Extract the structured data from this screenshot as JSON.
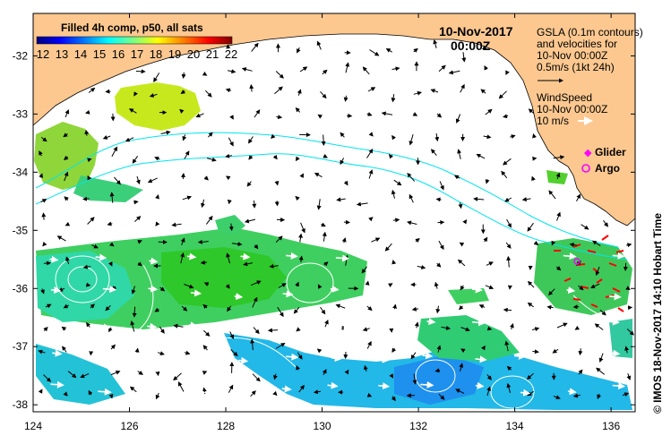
{
  "map": {
    "date": "10-Nov-2017",
    "time": "00:00Z",
    "colorbar": {
      "title": "Filled 4h comp, p50, all sats",
      "ticks": [
        "12",
        "13",
        "14",
        "15",
        "16",
        "17",
        "18",
        "19",
        "20",
        "21",
        "22"
      ],
      "colors": [
        "#00007f",
        "#0000ff",
        "#007fff",
        "#00ffff",
        "#7fff7f",
        "#ffff00",
        "#ff7f00",
        "#ff0000",
        "#7f0000"
      ]
    },
    "legend": {
      "gsla_line1": "GSLA (0.1m contours)",
      "gsla_line2": "and velocities for",
      "gsla_line3": "10-Nov 00:00Z",
      "gsla_line4": "0.5m/s (1kt 24h)",
      "wind_line1": "WindSpeed",
      "wind_line2": "10-Nov 00:00Z",
      "wind_line3": "10 m/s",
      "glider": "Glider",
      "argo": "Argo"
    },
    "credit": "© IMOS 18-Nov-2017 14:10 Hobart Time",
    "x_ticks": [
      "124",
      "126",
      "128",
      "130",
      "132",
      "134",
      "136"
    ],
    "y_ticks": [
      "-32",
      "-33",
      "-34",
      "-35",
      "-36",
      "-37",
      "-38"
    ],
    "colors": {
      "land": "#fcc890",
      "contour": "#00e5ee",
      "glider": "#ff00ff",
      "argo": "#ff00ff",
      "ship_track": "#ff0000"
    }
  }
}
